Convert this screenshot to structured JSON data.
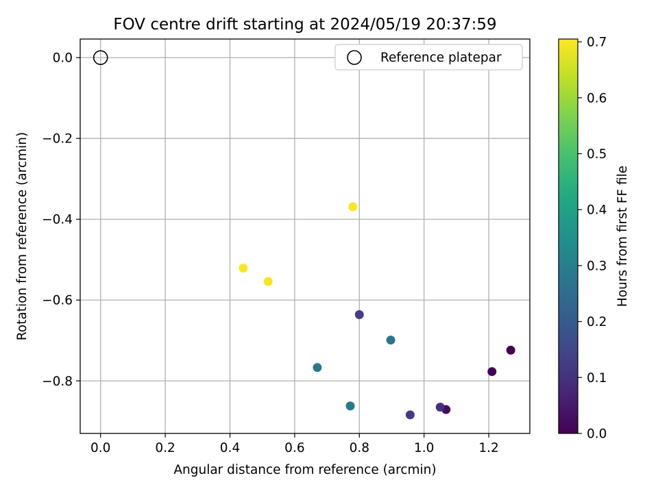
{
  "chart_data": {
    "type": "scatter",
    "title": "FOV centre drift starting at 2024/05/19 20:37:59",
    "xlabel": "Angular distance from reference (arcmin)",
    "ylabel": "Rotation from reference (arcmin)",
    "xlim": [
      -0.063,
      1.327
    ],
    "ylim": [
      -0.93,
      0.046
    ],
    "x_ticks": [
      "0.0",
      "0.2",
      "0.4",
      "0.6",
      "0.8",
      "1.0",
      "1.2"
    ],
    "x_tick_values": [
      0.0,
      0.2,
      0.4,
      0.6,
      0.8,
      1.0,
      1.2
    ],
    "y_ticks": [
      "0.0",
      "−0.2",
      "−0.4",
      "−0.6",
      "−0.8"
    ],
    "y_tick_values": [
      0.0,
      -0.2,
      -0.4,
      -0.6,
      -0.8
    ],
    "grid": true,
    "legend": {
      "position": "top-right",
      "label": "Reference platepar"
    },
    "reference_point": {
      "x": 0.0,
      "y": 0.0
    },
    "colorbar": {
      "label": "Hours from first FF file",
      "range": [
        0.0,
        0.705
      ],
      "ticks": [
        "0.0",
        "0.1",
        "0.2",
        "0.3",
        "0.4",
        "0.5",
        "0.6",
        "0.7"
      ],
      "tick_values": [
        0.0,
        0.1,
        0.2,
        0.3,
        0.4,
        0.5,
        0.6,
        0.7
      ],
      "colormap": "viridis"
    },
    "points": [
      {
        "x": 1.268,
        "y": -0.724,
        "hours": 0.0
      },
      {
        "x": 1.21,
        "y": -0.777,
        "hours": 0.0
      },
      {
        "x": 1.068,
        "y": -0.871,
        "hours": 0.02
      },
      {
        "x": 1.05,
        "y": -0.865,
        "hours": 0.1
      },
      {
        "x": 0.957,
        "y": -0.884,
        "hours": 0.12
      },
      {
        "x": 0.8,
        "y": -0.636,
        "hours": 0.13
      },
      {
        "x": 0.897,
        "y": -0.699,
        "hours": 0.27
      },
      {
        "x": 0.67,
        "y": -0.767,
        "hours": 0.28
      },
      {
        "x": 0.772,
        "y": -0.862,
        "hours": 0.28
      },
      {
        "x": 0.78,
        "y": -0.369,
        "hours": 0.7
      },
      {
        "x": 0.441,
        "y": -0.521,
        "hours": 0.7
      },
      {
        "x": 0.518,
        "y": -0.554,
        "hours": 0.7
      }
    ]
  }
}
